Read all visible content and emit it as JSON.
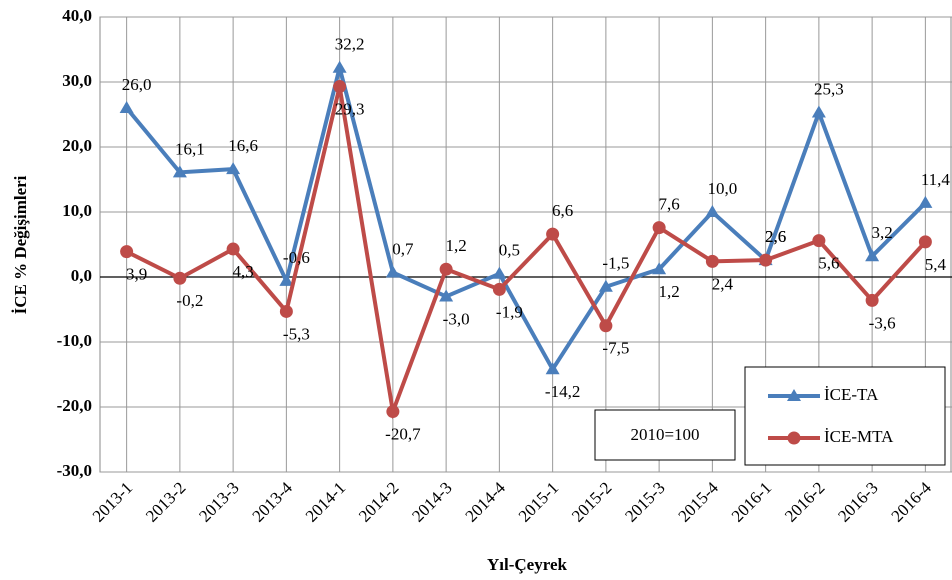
{
  "chart_data": {
    "type": "line",
    "y_label": "İCE % Değişimleri",
    "x_label": "Yıl-Çeyrek",
    "annotation": "2010=100",
    "categories": [
      "2013-1",
      "2013-2",
      "2013-3",
      "2013-4",
      "2014-1",
      "2014-2",
      "2014-3",
      "2014-4",
      "2015-1",
      "2015-2",
      "2015-3",
      "2015-4",
      "2016-1",
      "2016-2",
      "2016-3",
      "2016-4"
    ],
    "series": [
      {
        "name": "İCE-TA",
        "color": "#4a7ebb",
        "marker": "triangle",
        "values": [
          26.0,
          16.1,
          16.6,
          -0.6,
          32.2,
          0.7,
          -3.0,
          0.5,
          -14.2,
          -1.5,
          1.2,
          10.0,
          2.6,
          25.3,
          3.2,
          11.4
        ],
        "value_labels": [
          "26,0",
          "16,1",
          "16,6",
          "-0,6",
          "32,2",
          "0,7",
          "-3,0",
          "0,5",
          "-14,2",
          "-1,5",
          "1,2",
          "10,0",
          "2,6",
          "25,3",
          "3,2",
          "11,4"
        ]
      },
      {
        "name": "İCE-MTA",
        "color": "#be4b48",
        "marker": "circle",
        "values": [
          3.9,
          -0.2,
          4.3,
          -5.3,
          29.3,
          -20.7,
          1.2,
          -1.9,
          6.6,
          -7.5,
          7.6,
          2.4,
          2.6,
          5.6,
          -3.6,
          5.4
        ],
        "value_labels": [
          "3,9",
          "-0,2",
          "4,3",
          "-5,3",
          "29,3",
          "-20,7",
          "1,2",
          "-1,9",
          "6,6",
          "-7,5",
          "7,6",
          "2,4",
          "2,6",
          "5,6",
          "-3,6",
          "5,4"
        ]
      }
    ],
    "ylim": [
      -30,
      40
    ],
    "yticks": [
      {
        "value": -30,
        "label": "-30,0"
      },
      {
        "value": -20,
        "label": "-20,0"
      },
      {
        "value": -10,
        "label": "-10,0"
      },
      {
        "value": 0,
        "label": "0,0"
      },
      {
        "value": 10,
        "label": "10,0"
      },
      {
        "value": 20,
        "label": "20,0"
      },
      {
        "value": 30,
        "label": "30,0"
      },
      {
        "value": 40,
        "label": "40,0"
      }
    ],
    "grid": true
  }
}
